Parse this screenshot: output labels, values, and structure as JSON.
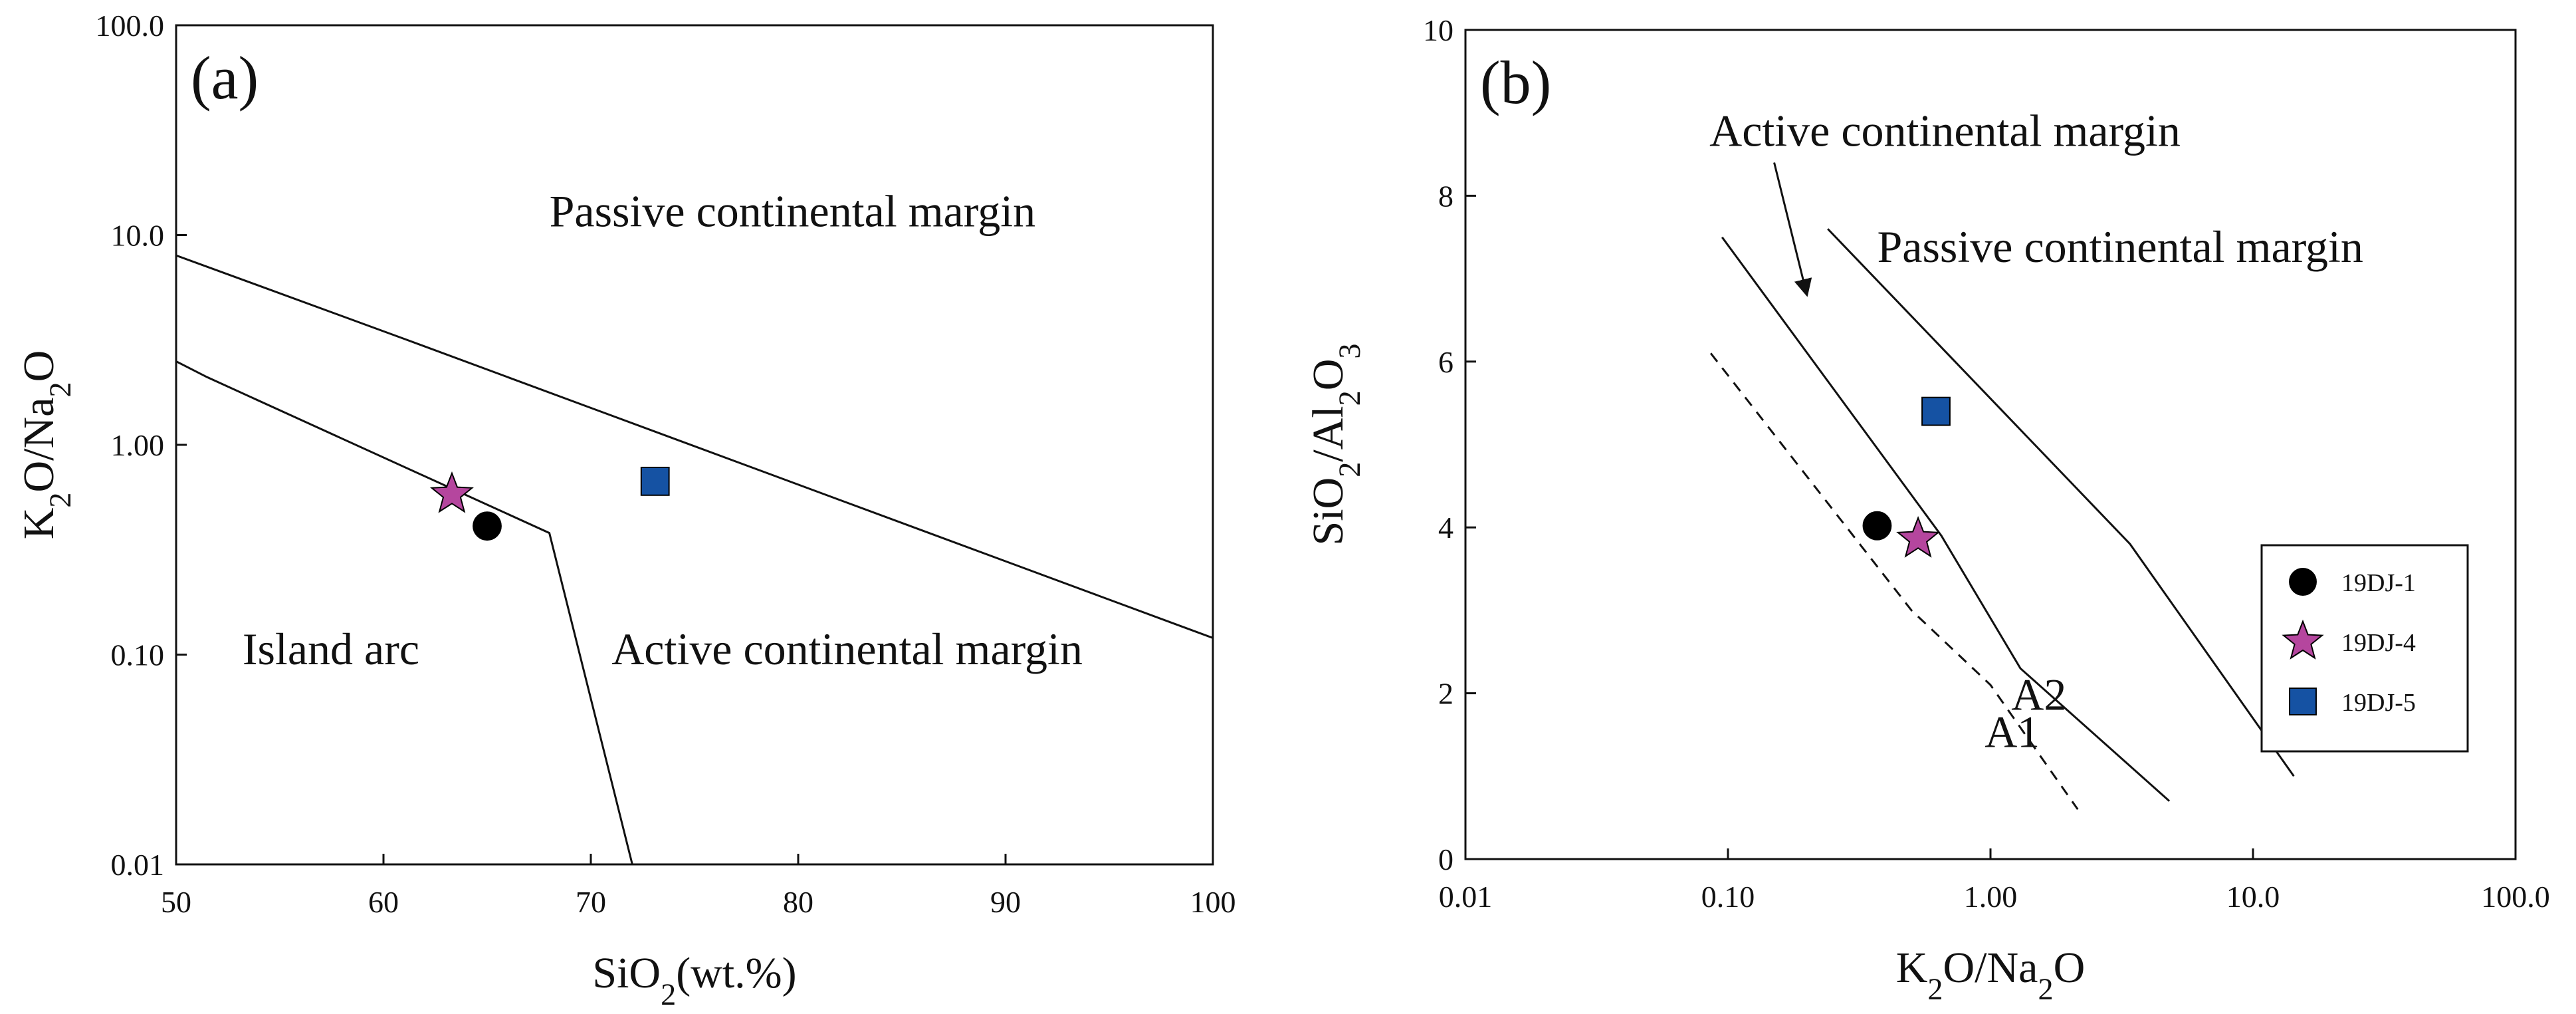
{
  "chart_data": [
    {
      "type": "scatter",
      "panel_label": "(a)",
      "x_scale": "linear",
      "y_scale": "log",
      "xlabel": "SiO2(wt.%)",
      "ylabel": "K2O/Na2O",
      "xlim": [
        50,
        100
      ],
      "ylim": [
        0.01,
        100
      ],
      "x_ticks": [
        50,
        60,
        70,
        80,
        90,
        100
      ],
      "x_tick_labels": [
        "50",
        "60",
        "70",
        "80",
        "90",
        "100"
      ],
      "y_ticks": [
        0.01,
        0.1,
        1,
        10,
        100
      ],
      "y_tick_labels": [
        "0.01",
        "0.10",
        "1.00",
        "10.0",
        "100.0"
      ],
      "boundaries": [
        {
          "name": "passive-active boundary",
          "style": "solid",
          "points": [
            [
              50,
              8.0
            ],
            [
              61,
              3.2
            ],
            [
              100,
              0.12
            ]
          ]
        },
        {
          "name": "arc-active boundary",
          "style": "solid",
          "points": [
            [
              50,
              2.5
            ],
            [
              51.5,
              2.1
            ],
            [
              68,
              0.38
            ],
            [
              72,
              0.01
            ]
          ]
        }
      ],
      "regions": [
        {
          "label": "Passive continental margin",
          "x": 68,
          "y": 11
        },
        {
          "label": "Island arc",
          "x": 53.2,
          "y": 0.09
        },
        {
          "label": "Active continental margin",
          "x": 71,
          "y": 0.09
        }
      ],
      "series": [
        {
          "name": "19DJ-1",
          "marker": "circle",
          "color": "#000000",
          "points": [
            [
              65,
              0.41
            ]
          ]
        },
        {
          "name": "19DJ-4",
          "marker": "star",
          "color": "#B5469E",
          "points": [
            [
              63.3,
              0.58
            ]
          ]
        },
        {
          "name": "19DJ-5",
          "marker": "square",
          "color": "#1552A3",
          "points": [
            [
              73.1,
              0.67
            ]
          ]
        }
      ]
    },
    {
      "type": "scatter",
      "panel_label": "(b)",
      "x_scale": "log",
      "y_scale": "linear",
      "xlabel": "K2O/Na2O",
      "ylabel": "SiO2/Al2O3",
      "xlim": [
        0.01,
        100
      ],
      "ylim": [
        0,
        10
      ],
      "x_ticks": [
        0.01,
        0.1,
        1,
        10,
        100
      ],
      "x_tick_labels": [
        "0.01",
        "0.10",
        "1.00",
        "10.0",
        "100.0"
      ],
      "y_ticks": [
        0,
        2,
        4,
        6,
        8,
        10
      ],
      "y_tick_labels": [
        "0",
        "2",
        "4",
        "6",
        "8",
        "10"
      ],
      "boundaries": [
        {
          "name": "A1",
          "style": "dashed",
          "points": [
            [
              0.086,
              6.1
            ],
            [
              0.5,
              3.0
            ],
            [
              1.0,
              2.1
            ],
            [
              2.15,
              0.6
            ]
          ]
        },
        {
          "name": "A2",
          "style": "solid",
          "points": [
            [
              0.095,
              7.5
            ],
            [
              0.65,
              3.9
            ],
            [
              1.3,
              2.3
            ],
            [
              4.8,
              0.7
            ]
          ]
        },
        {
          "name": "passive boundary",
          "style": "solid",
          "points": [
            [
              0.24,
              7.6
            ],
            [
              3.4,
              3.8
            ],
            [
              14.3,
              1.0
            ]
          ]
        }
      ],
      "regions": [
        {
          "label": "Active continental margin",
          "x": 0.085,
          "y": 8.6
        },
        {
          "label": "Passive continental margin",
          "x": 0.37,
          "y": 7.2
        }
      ],
      "line_labels": [
        {
          "label": "A1",
          "x": 0.95,
          "y": 1.35
        },
        {
          "label": "A2",
          "x": 1.2,
          "y": 1.8
        }
      ],
      "annotations": [
        {
          "type": "arrow",
          "from": [
            0.15,
            8.4
          ],
          "to": [
            0.2,
            6.8
          ],
          "text_ref": "Active continental margin"
        }
      ],
      "series": [
        {
          "name": "19DJ-1",
          "marker": "circle",
          "color": "#000000",
          "points": [
            [
              0.37,
              4.02
            ]
          ]
        },
        {
          "name": "19DJ-4",
          "marker": "star",
          "color": "#B5469E",
          "points": [
            [
              0.53,
              3.86
            ]
          ]
        },
        {
          "name": "19DJ-5",
          "marker": "square",
          "color": "#1552A3",
          "points": [
            [
              0.62,
              5.4
            ]
          ]
        }
      ],
      "legend": {
        "position": "right",
        "entries": [
          {
            "label": "19DJ-1",
            "marker": "circle",
            "color": "#000000"
          },
          {
            "label": "19DJ-4",
            "marker": "star",
            "color": "#B5469E"
          },
          {
            "label": "19DJ-5",
            "marker": "square",
            "color": "#1552A3"
          }
        ]
      }
    }
  ]
}
